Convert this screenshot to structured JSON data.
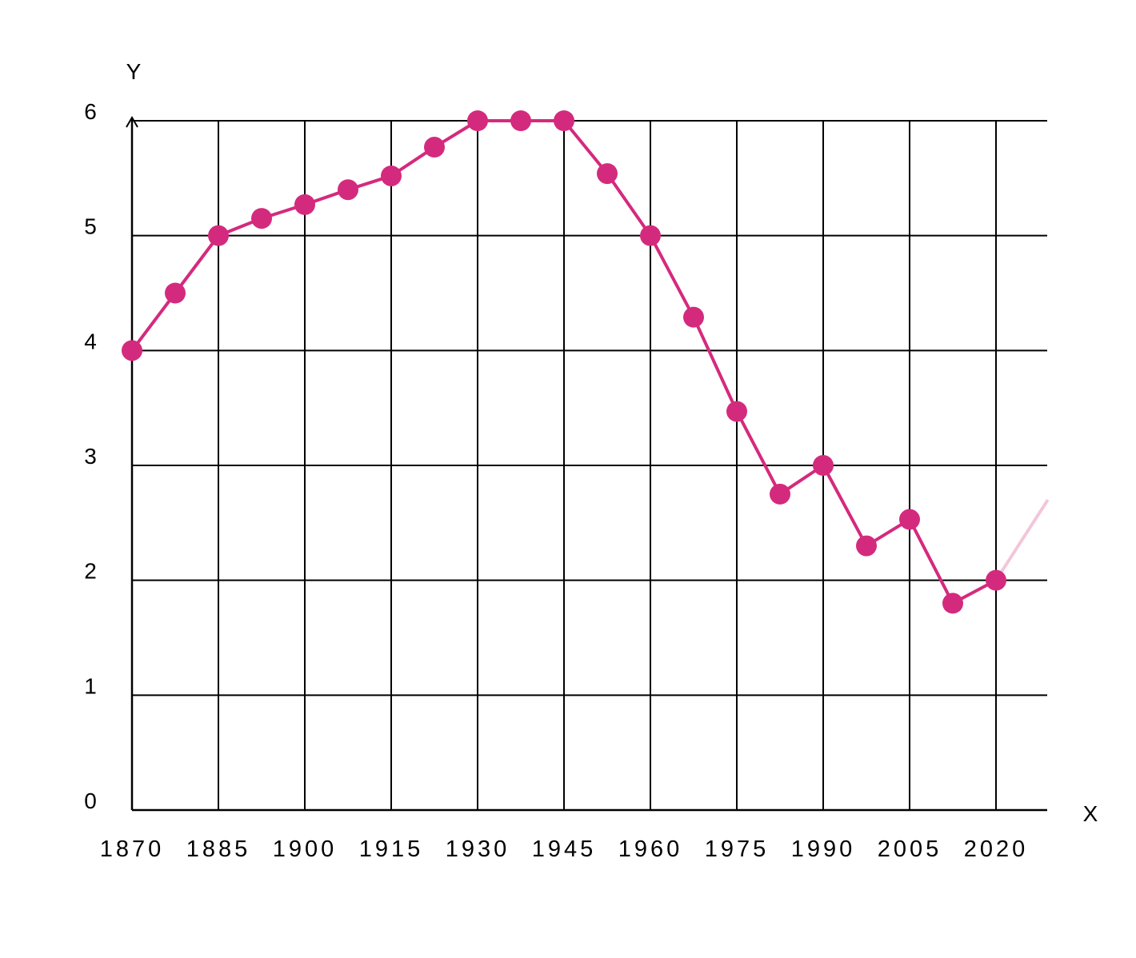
{
  "chart_data": {
    "type": "line",
    "xlabel": "X",
    "ylabel": "Y",
    "xlim": [
      1870,
      2030
    ],
    "ylim": [
      0,
      6
    ],
    "xticks": [
      1870,
      1885,
      1900,
      1915,
      1930,
      1945,
      1960,
      1975,
      1990,
      2005,
      2020
    ],
    "xtick_labels": [
      "1870",
      "1885",
      "1900",
      "1915",
      "1930",
      "1945",
      "1960",
      "1975",
      "1990",
      "2005",
      "2020"
    ],
    "yticks": [
      0,
      1,
      2,
      3,
      4,
      5,
      6
    ],
    "ytick_labels": [
      "0",
      "1",
      "2",
      "3",
      "4",
      "5",
      "6"
    ],
    "grid": true,
    "series": [
      {
        "color": "#d42a7e",
        "x": [
          1870,
          1877.5,
          1885,
          1892.5,
          1900,
          1907.5,
          1915,
          1922.5,
          1930,
          1937.5,
          1945,
          1952.5,
          1960,
          1967.5,
          1975,
          1982.5,
          1990,
          1997.5,
          2005,
          2012.5,
          2020
        ],
        "y": [
          4.0,
          4.5,
          5.0,
          5.15,
          5.27,
          5.4,
          5.52,
          5.77,
          6.0,
          6.0,
          6.0,
          5.54,
          5.0,
          4.29,
          3.47,
          2.75,
          3.0,
          2.3,
          2.53,
          1.8,
          2.0
        ]
      }
    ],
    "projection": {
      "color": "#f2c6da",
      "x": [
        2020,
        2029
      ],
      "y": [
        2.0,
        2.7
      ]
    }
  }
}
